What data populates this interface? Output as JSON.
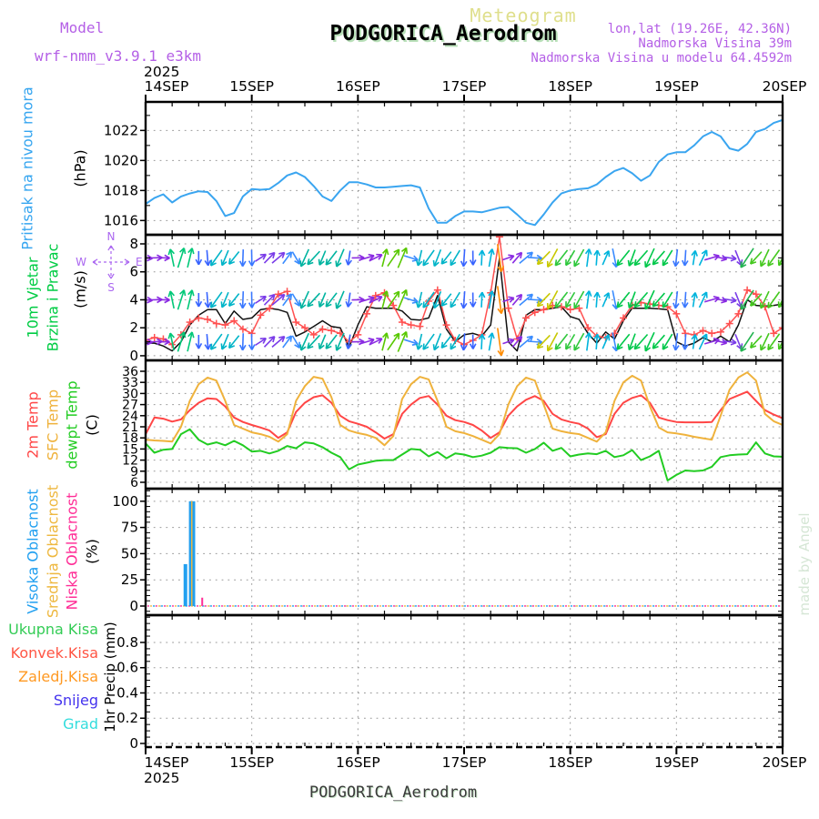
{
  "header": {
    "app_title": "Meteogram",
    "model_label": "Model",
    "model_version": "wrf-nmm_v3.9.1 e3km",
    "station_title": "PODGORICA_Aerodrom",
    "lonlat": "lon,lat (19.26E, 42.36N)",
    "elevation": "Nadmorska Visina 39m",
    "model_elevation": "Nadmorska Visina u modelu 64.4592m",
    "accent_purple": "#B45FE6",
    "accent_khaki": "#DFDF8C"
  },
  "axis": {
    "year": "2025",
    "days": [
      "14SEP",
      "15SEP",
      "16SEP",
      "17SEP",
      "18SEP",
      "19SEP",
      "20SEP"
    ],
    "hours_total": 144
  },
  "labels": {
    "pressure": "Pritisak na nivou mora",
    "pressure_unit": "(hPa)",
    "wind1": "10m Vjetar",
    "wind2": "Brzina i Pravac",
    "wind_unit": "(m/s)",
    "compass": {
      "n": "N",
      "e": "E",
      "s": "S",
      "w": "W"
    },
    "temp1": "2m Temp",
    "temp2": "SFC Temp",
    "temp3": "dewpt Temp",
    "temp_unit": "(C)",
    "cloud1": "Visoka Oblacnost",
    "cloud2": "Srednja Oblacnost",
    "cloud3": "Niska Oblacnost",
    "cloud_unit": "(%)",
    "precip_legend": [
      {
        "label": "Ukupna Kisa",
        "color": "#33CC55"
      },
      {
        "label": "Konvek.Kisa",
        "color": "#FF5544"
      },
      {
        "label": "Zaledj.Kisa",
        "color": "#FF9922"
      },
      {
        "label": "Snijeg",
        "color": "#4433EE"
      },
      {
        "label": "Grad",
        "color": "#33DDDD"
      }
    ],
    "precip_axis": "1hr Precip (mm)",
    "made_by": "made by Angel",
    "footer": "PODGORICA_Aerodrom"
  },
  "colors": {
    "pressure_line": "#3AA5F0",
    "pressure_label": "#35A5F0",
    "wind_label": "#00CC44",
    "compass": "#AA66F0",
    "temp_2m": "#FF4646",
    "temp_sfc": "#EFB23C",
    "temp_dew": "#22CC22",
    "cloud_high": "#22A0F0",
    "cloud_mid": "#EEB840",
    "cloud_low": "#FF2D96",
    "wind_speed": "#111111",
    "wind_gust": "#FF5050",
    "made_by": "#D5E6D5",
    "footer": "#3A3A3A"
  },
  "chart_data": [
    {
      "id": "pressure",
      "type": "line",
      "name": "Pritisak na nivou mora",
      "unit": "hPa",
      "x_start_h": 0,
      "x_step_h": 2,
      "px": {
        "top": 112,
        "bottom": 258
      },
      "ylim": [
        1015.05,
        1023.9
      ],
      "yticks": [
        1016,
        1018,
        1020,
        1022
      ],
      "yminor": 1,
      "series": [
        {
          "name": "pritisak",
          "color": "#3AA5F0",
          "width": 2,
          "values": [
            1017.1,
            1017.5,
            1017.75,
            1017.2,
            1017.6,
            1017.8,
            1017.95,
            1017.9,
            1017.3,
            1016.3,
            1016.5,
            1017.6,
            1018.1,
            1018.05,
            1018.1,
            1018.5,
            1019.0,
            1019.2,
            1018.9,
            1018.3,
            1017.6,
            1017.3,
            1018.0,
            1018.55,
            1018.55,
            1018.4,
            1018.2,
            1018.2,
            1018.25,
            1018.3,
            1018.35,
            1018.2,
            1016.8,
            1015.85,
            1015.85,
            1016.3,
            1016.6,
            1016.6,
            1016.55,
            1016.7,
            1016.85,
            1016.9,
            1016.4,
            1015.85,
            1015.7,
            1016.4,
            1017.2,
            1017.8,
            1018.0,
            1018.1,
            1018.15,
            1018.4,
            1018.9,
            1019.3,
            1019.5,
            1019.15,
            1018.65,
            1019.0,
            1019.9,
            1020.4,
            1020.55,
            1020.55,
            1021.0,
            1021.6,
            1021.9,
            1021.6,
            1020.8,
            1020.65,
            1021.1,
            1021.9,
            1022.1,
            1022.5,
            1022.7
          ]
        }
      ]
    },
    {
      "id": "wind",
      "type": "wind",
      "name": "10m Vjetar Brzina i Pravac",
      "unit": "m/s",
      "x_start_h": 0,
      "x_step_h": 2,
      "px": {
        "top": 258,
        "bottom": 396
      },
      "ylim": [
        -0.33,
        8.65
      ],
      "yticks": [
        0,
        2,
        4,
        6,
        8
      ],
      "yminor": 1,
      "series": [
        {
          "name": "brzina",
          "color": "#111111",
          "width": 1.5,
          "values": [
            0.9,
            0.9,
            0.7,
            0.35,
            1.0,
            2.2,
            2.9,
            3.3,
            3.3,
            2.3,
            3.2,
            2.6,
            2.7,
            3.3,
            3.4,
            3.3,
            3.1,
            1.4,
            1.7,
            2.1,
            2.5,
            2.1,
            2.0,
            0.6,
            2.2,
            3.5,
            3.4,
            3.4,
            3.4,
            3.2,
            2.6,
            2.55,
            2.7,
            4.3,
            1.9,
            1.0,
            1.5,
            1.6,
            1.4,
            2.2,
            7.0,
            1.0,
            0.35,
            2.9,
            3.3,
            3.3,
            3.4,
            3.5,
            2.8,
            2.6,
            1.6,
            0.9,
            1.7,
            1.2,
            2.5,
            3.4,
            3.4,
            3.4,
            3.35,
            3.3,
            1.0,
            0.7,
            0.9,
            1.3,
            1.0,
            1.4,
            1.0,
            2.2,
            4.0,
            3.6,
            3.55,
            3.6,
            3.7
          ]
        },
        {
          "name": "udari",
          "color": "#FF5050",
          "width": 1.5,
          "marker": "plus",
          "values": [
            1.1,
            1.3,
            1.2,
            0.8,
            1.5,
            2.4,
            2.7,
            2.6,
            2.3,
            2.2,
            2.5,
            1.9,
            1.6,
            2.9,
            3.4,
            4.4,
            4.6,
            2.4,
            2.0,
            1.5,
            1.9,
            1.8,
            1.6,
            1.0,
            1.5,
            3.0,
            4.3,
            4.5,
            3.6,
            2.4,
            2.2,
            2.1,
            3.9,
            4.7,
            2.2,
            1.1,
            0.8,
            1.1,
            1.5,
            4.5,
            8.5,
            3.4,
            1.2,
            2.7,
            3.1,
            3.3,
            3.6,
            3.5,
            3.3,
            3.4,
            2.0,
            1.4,
            1.3,
            1.6,
            2.7,
            3.6,
            3.8,
            3.7,
            3.6,
            3.5,
            3.0,
            1.6,
            1.5,
            1.8,
            1.6,
            1.7,
            2.3,
            3.0,
            4.7,
            4.4,
            3.5,
            1.6,
            2.0
          ]
        }
      ],
      "arrow_rows": [
        7,
        4,
        1
      ],
      "arrow_step_h": 2,
      "arrow_segments": [
        [
          0,
          5,
          95,
          85,
          15,
          "#8A2BE2"
        ],
        [
          6,
          11,
          -5,
          30,
          21,
          "#00C878"
        ],
        [
          12,
          14,
          170,
          185,
          17,
          "#3864FF"
        ],
        [
          15,
          21,
          205,
          215,
          19,
          "#00B4C8"
        ],
        [
          22,
          25,
          185,
          175,
          17,
          "#3A78FF"
        ],
        [
          26,
          31,
          55,
          40,
          16,
          "#7A3CE8"
        ],
        [
          32,
          34,
          45,
          140,
          17,
          "#3A8CFF"
        ],
        [
          35,
          45,
          215,
          208,
          19,
          "#00B4A0"
        ],
        [
          46,
          47,
          185,
          185,
          17,
          "#3864FF"
        ],
        [
          48,
          52,
          90,
          60,
          15,
          "#8A2BE2"
        ],
        [
          53,
          58,
          18,
          32,
          22,
          "#58C800"
        ],
        [
          59,
          61,
          45,
          150,
          17,
          "#3A8CFF"
        ],
        [
          62,
          70,
          203,
          215,
          19,
          "#00B4C8"
        ],
        [
          71,
          74,
          185,
          178,
          17,
          "#3864FF"
        ],
        [
          75,
          78,
          8,
          4,
          18,
          "#00B4DC"
        ],
        [
          79,
          81,
          178,
          182,
          30,
          "#FF8C00"
        ],
        [
          82,
          85,
          62,
          45,
          15,
          "#8A2BE2"
        ],
        [
          86,
          89,
          40,
          135,
          17,
          "#3A8CFF"
        ],
        [
          90,
          93,
          216,
          214,
          21,
          "#C8C800"
        ],
        [
          94,
          99,
          214,
          209,
          21,
          "#2FC83C"
        ],
        [
          100,
          104,
          4,
          16,
          18,
          "#00B4DC"
        ],
        [
          105,
          107,
          150,
          205,
          19,
          "#3A8CFF"
        ],
        [
          108,
          118,
          209,
          216,
          21,
          "#00C84A"
        ],
        [
          119,
          122,
          185,
          183,
          17,
          "#3A78FF"
        ],
        [
          123,
          126,
          8,
          20,
          18,
          "#00B4DC"
        ],
        [
          127,
          131,
          75,
          100,
          15,
          "#8A2BE2"
        ],
        [
          132,
          134,
          108,
          148,
          16,
          "#7A3CE8"
        ],
        [
          135,
          137,
          227,
          219,
          25,
          "#22B450"
        ],
        [
          138,
          144,
          214,
          209,
          20,
          "#44C81E"
        ]
      ]
    },
    {
      "id": "temperature",
      "type": "line",
      "name": "2m / SFC / dewpt Temp",
      "unit": "C",
      "x_start_h": 0,
      "x_step_h": 2,
      "px": {
        "top": 396,
        "bottom": 537
      },
      "ylim": [
        4.28,
        38.95
      ],
      "yticks": [
        6,
        9,
        12,
        15,
        18,
        21,
        24,
        27,
        30,
        33,
        36
      ],
      "series": [
        {
          "name": "2m Temp",
          "color": "#FF4646",
          "width": 2,
          "values": [
            19.0,
            23.5,
            23.2,
            22.4,
            23.0,
            25.5,
            27.5,
            28.7,
            28.5,
            26.5,
            23.5,
            22.3,
            21.5,
            20.8,
            20.0,
            18.0,
            19.5,
            25.0,
            27.5,
            29.0,
            29.5,
            27.5,
            24.0,
            22.5,
            21.8,
            21.0,
            19.5,
            17.8,
            19.0,
            24.5,
            27.0,
            28.8,
            29.3,
            27.0,
            24.0,
            22.8,
            22.3,
            21.5,
            20.0,
            18.0,
            19.5,
            24.0,
            26.5,
            28.3,
            29.3,
            28.0,
            24.5,
            23.0,
            22.3,
            21.8,
            20.5,
            18.2,
            19.0,
            24.5,
            27.5,
            28.8,
            29.5,
            27.5,
            23.5,
            22.8,
            22.3,
            22.2,
            22.2,
            22.2,
            22.3,
            25.5,
            28.5,
            29.5,
            30.5,
            28.0,
            25.5,
            24.3,
            23.3
          ]
        },
        {
          "name": "SFC Temp",
          "color": "#EFB23C",
          "width": 2,
          "values": [
            17.5,
            17.3,
            17.2,
            17.0,
            21.0,
            28.0,
            32.5,
            34.3,
            33.5,
            28.0,
            21.5,
            20.5,
            19.5,
            19.0,
            18.3,
            17.0,
            19.0,
            28.0,
            32.0,
            34.5,
            34.0,
            29.0,
            21.5,
            20.0,
            19.3,
            18.8,
            18.0,
            16.0,
            18.5,
            28.5,
            32.5,
            34.5,
            33.8,
            28.0,
            21.0,
            19.8,
            19.3,
            18.5,
            17.5,
            16.5,
            19.0,
            27.0,
            32.0,
            34.3,
            33.5,
            27.0,
            20.5,
            19.8,
            19.3,
            19.0,
            18.0,
            17.0,
            19.5,
            28.0,
            33.0,
            34.8,
            33.5,
            26.5,
            20.8,
            19.5,
            19.2,
            18.8,
            18.3,
            17.9,
            17.5,
            24.0,
            31.0,
            34.3,
            35.7,
            33.5,
            24.5,
            22.5,
            21.5
          ]
        },
        {
          "name": "dewpt Temp",
          "color": "#22CC22",
          "width": 2,
          "values": [
            16.5,
            14.0,
            14.8,
            15.0,
            19.0,
            20.3,
            17.5,
            16.2,
            16.8,
            16.0,
            17.2,
            16.0,
            14.3,
            14.5,
            13.8,
            14.5,
            15.8,
            15.2,
            16.8,
            16.5,
            15.5,
            14.0,
            12.8,
            9.5,
            10.8,
            11.3,
            11.8,
            12.0,
            12.0,
            13.5,
            15.0,
            14.8,
            13.0,
            14.2,
            12.5,
            13.8,
            13.5,
            12.8,
            13.2,
            14.0,
            15.5,
            15.3,
            15.2,
            14.0,
            15.0,
            16.7,
            14.5,
            15.3,
            13.0,
            13.5,
            13.8,
            13.6,
            14.5,
            12.8,
            13.3,
            14.7,
            12.0,
            13.0,
            14.5,
            6.5,
            8.0,
            9.2,
            9.0,
            9.2,
            10.2,
            12.8,
            13.3,
            13.5,
            13.6,
            16.8,
            13.8,
            13.0,
            12.9
          ]
        }
      ]
    },
    {
      "id": "cloud",
      "type": "bar",
      "name": "Oblacnost",
      "unit": "%",
      "px": {
        "top": 537,
        "bottom": 676
      },
      "ylim": [
        -8.7,
        112
      ],
      "yticks": [
        0,
        25,
        50,
        75,
        100
      ],
      "yminor": 5,
      "bars": [
        {
          "series": "visoka",
          "t": 9.0,
          "v": 40,
          "w": 4,
          "color": "#22A0F0"
        },
        {
          "series": "visoka",
          "t": 10.1,
          "v": 100,
          "w": 3,
          "color": "#22A0F0"
        },
        {
          "series": "srednja",
          "t": 10.5,
          "v": 100,
          "w": 2,
          "color": "#EEB840"
        },
        {
          "series": "visoka",
          "t": 10.9,
          "v": 100,
          "w": 3,
          "color": "#22A0F0"
        },
        {
          "series": "niska",
          "t": 12.8,
          "v": 8,
          "w": 2,
          "color": "#FF2D96"
        }
      ],
      "baseline_colors": [
        "#FF2D96",
        "#22A0F0",
        "#EEB840"
      ]
    },
    {
      "id": "precip",
      "type": "line",
      "name": "1hr Precip",
      "unit": "mm",
      "px": {
        "top": 676,
        "bottom": 821
      },
      "ylim": [
        -0.029,
        1.016
      ],
      "yticks": [
        0,
        0.2,
        0.4,
        0.6,
        0.8
      ],
      "ytick_labels": [
        "0",
        "0.2",
        "0.4",
        "0.6",
        "0.8"
      ],
      "yminor": 0.05,
      "bottom_dashed": true,
      "series": []
    }
  ]
}
